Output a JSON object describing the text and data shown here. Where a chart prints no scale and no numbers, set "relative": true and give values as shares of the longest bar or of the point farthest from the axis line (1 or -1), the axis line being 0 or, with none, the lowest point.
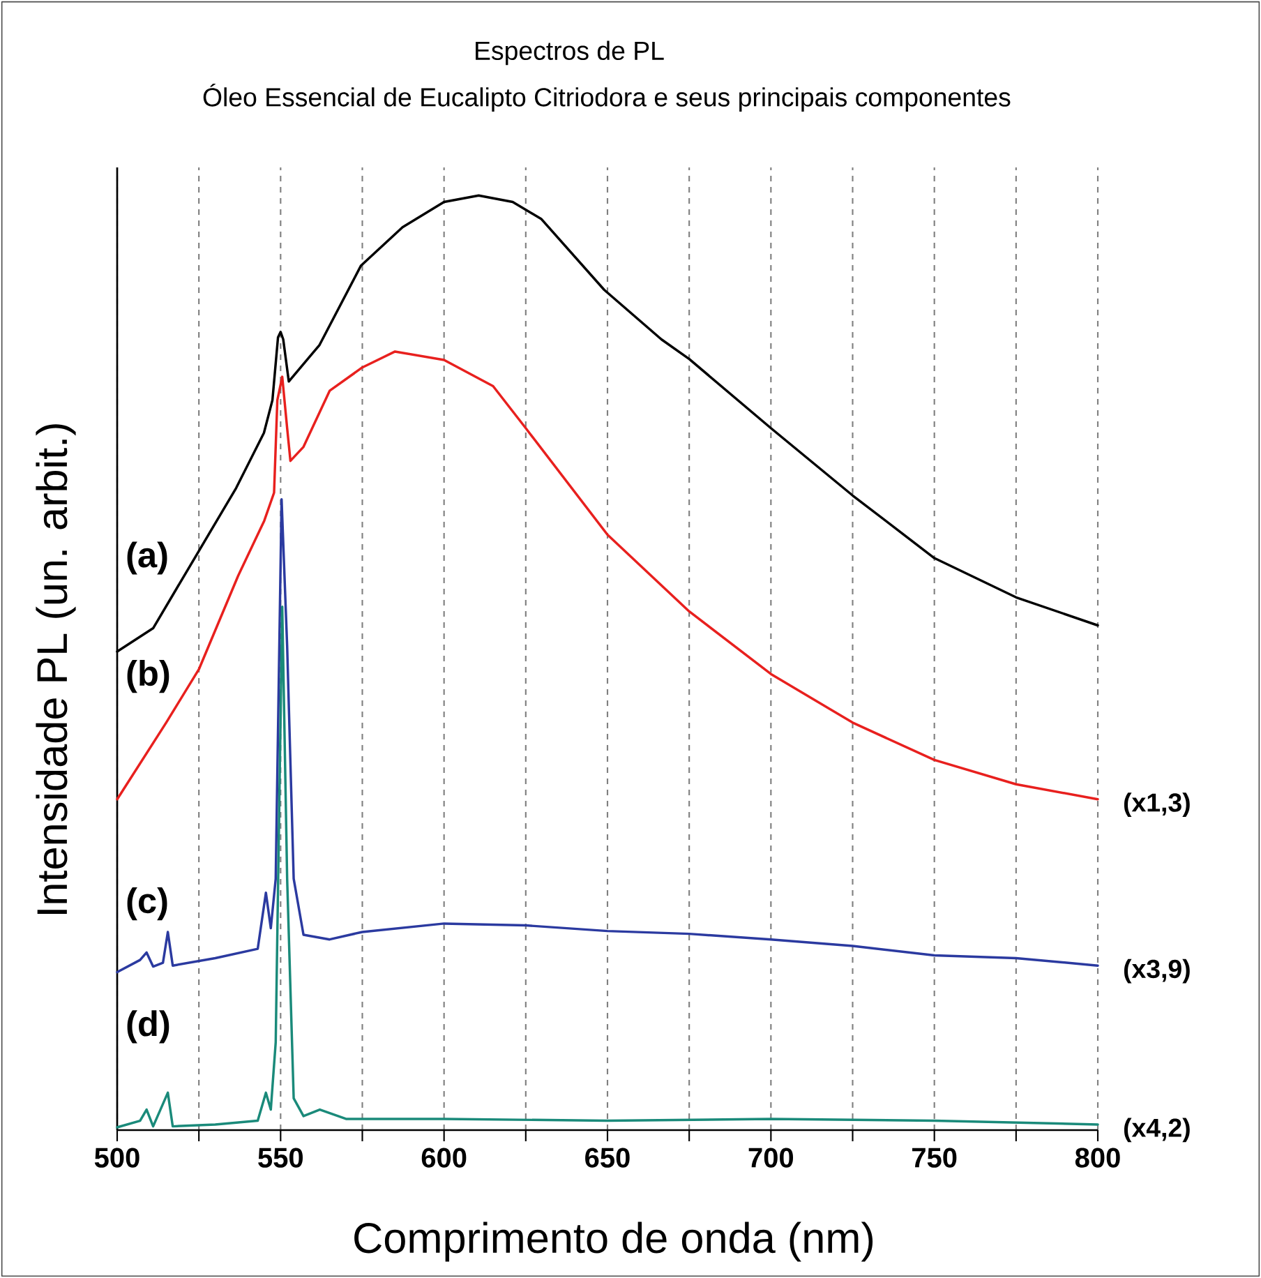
{
  "chart_data": {
    "type": "line",
    "title": "Espectros de PL",
    "subtitle": "Óleo Essencial de Eucalipto Citriodora e seus principais componentes",
    "xlabel": "Comprimento de onda (nm)",
    "ylabel": "Intensidade PL (un. arbit.)",
    "relative": true,
    "xlim": [
      500,
      800
    ],
    "xticks": [
      500,
      {
        "value": 525,
        "label": null
      },
      550,
      {
        "value": 575,
        "label": null
      },
      600,
      {
        "value": 625,
        "label": null
      },
      650,
      {
        "value": 675,
        "label": null
      },
      700,
      {
        "value": 725,
        "label": null
      },
      750,
      {
        "value": 775,
        "label": null
      },
      800
    ],
    "grid": "x",
    "line_style": "solid",
    "series": [
      {
        "name": "(a)",
        "color": "#000000",
        "x": [
          500,
          511,
          523.7,
          536.4,
          544.9,
          547.5,
          549.2,
          550,
          550.8,
          552.5,
          561.9,
          574.6,
          587.3,
          600,
          610.6,
          621,
          629.7,
          649,
          666.5,
          675,
          700,
          725,
          750,
          775,
          800
        ],
        "values": [
          0.512,
          0.537,
          0.612,
          0.687,
          0.746,
          0.781,
          0.848,
          0.854,
          0.846,
          0.801,
          0.84,
          0.925,
          0.966,
          0.993,
          1.0,
          0.993,
          0.975,
          0.899,
          0.846,
          0.825,
          0.751,
          0.679,
          0.612,
          0.57,
          0.54
        ]
      },
      {
        "name": "(b)",
        "color": "#e8201e",
        "x": [
          500,
          515,
          525,
          537,
          545,
          548,
          549,
          550.5,
          552,
          553,
          557,
          565,
          575,
          585,
          600,
          615,
          625,
          650,
          675,
          700,
          725,
          750,
          775,
          800
        ],
        "values": [
          0.354,
          0.436,
          0.493,
          0.593,
          0.652,
          0.682,
          0.781,
          0.806,
          0.751,
          0.716,
          0.731,
          0.791,
          0.816,
          0.833,
          0.824,
          0.796,
          0.751,
          0.637,
          0.555,
          0.488,
          0.436,
          0.396,
          0.37,
          0.354
        ]
      },
      {
        "name": "(c)",
        "color": "#2b3aa0",
        "x": [
          500,
          507,
          509,
          511,
          514,
          515.5,
          517,
          530,
          543,
          545.5,
          547,
          548.5,
          550.3,
          552,
          554,
          557,
          565,
          575,
          600,
          625,
          650,
          675,
          700,
          725,
          750,
          775,
          800
        ],
        "values": [
          0.169,
          0.182,
          0.19,
          0.175,
          0.179,
          0.212,
          0.176,
          0.184,
          0.194,
          0.254,
          0.216,
          0.269,
          0.675,
          0.518,
          0.269,
          0.209,
          0.204,
          0.212,
          0.221,
          0.219,
          0.213,
          0.21,
          0.204,
          0.197,
          0.187,
          0.184,
          0.176
        ]
      },
      {
        "name": "(d)",
        "color": "#1a8a7a",
        "x": [
          500,
          507,
          509,
          511,
          515.5,
          517,
          530,
          543,
          545.5,
          547,
          548.5,
          550.5,
          552,
          554,
          557,
          562,
          570,
          600,
          650,
          700,
          750,
          800
        ],
        "values": [
          0.003,
          0.01,
          0.022,
          0.004,
          0.04,
          0.004,
          0.006,
          0.01,
          0.04,
          0.022,
          0.094,
          0.56,
          0.269,
          0.034,
          0.015,
          0.022,
          0.012,
          0.012,
          0.01,
          0.012,
          0.01,
          0.006
        ]
      }
    ],
    "annotations": [
      "(x1,3)",
      "(x3,9)",
      "(x4,2)"
    ]
  }
}
